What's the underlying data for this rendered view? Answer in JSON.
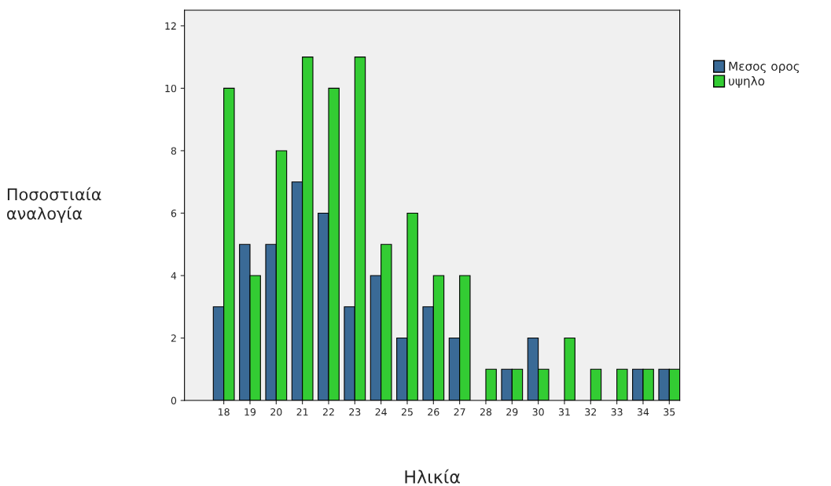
{
  "chart_data": {
    "type": "bar",
    "xlabel": "Ηλικία",
    "ylabel": "Ποσοστιαία\nαναλογία",
    "categories": [
      "18",
      "19",
      "20",
      "21",
      "22",
      "23",
      "24",
      "25",
      "26",
      "27",
      "28",
      "29",
      "30",
      "31",
      "32",
      "33",
      "34",
      "35"
    ],
    "series": [
      {
        "name": "Μεσος ορος",
        "color": "#3a6a96",
        "values": [
          3,
          5,
          5,
          7,
          6,
          3,
          4,
          2,
          3,
          2,
          null,
          1,
          2,
          null,
          null,
          null,
          1,
          1
        ]
      },
      {
        "name": "υψηλο",
        "color": "#33cc33",
        "values": [
          10,
          4,
          8,
          11,
          10,
          11,
          5,
          6,
          4,
          4,
          1,
          1,
          1,
          2,
          1,
          1,
          1,
          1
        ]
      }
    ],
    "ylim": [
      0,
      12.5
    ],
    "yticks": [
      0,
      2,
      4,
      6,
      8,
      10,
      12
    ],
    "grid": false,
    "legend": "top right"
  }
}
